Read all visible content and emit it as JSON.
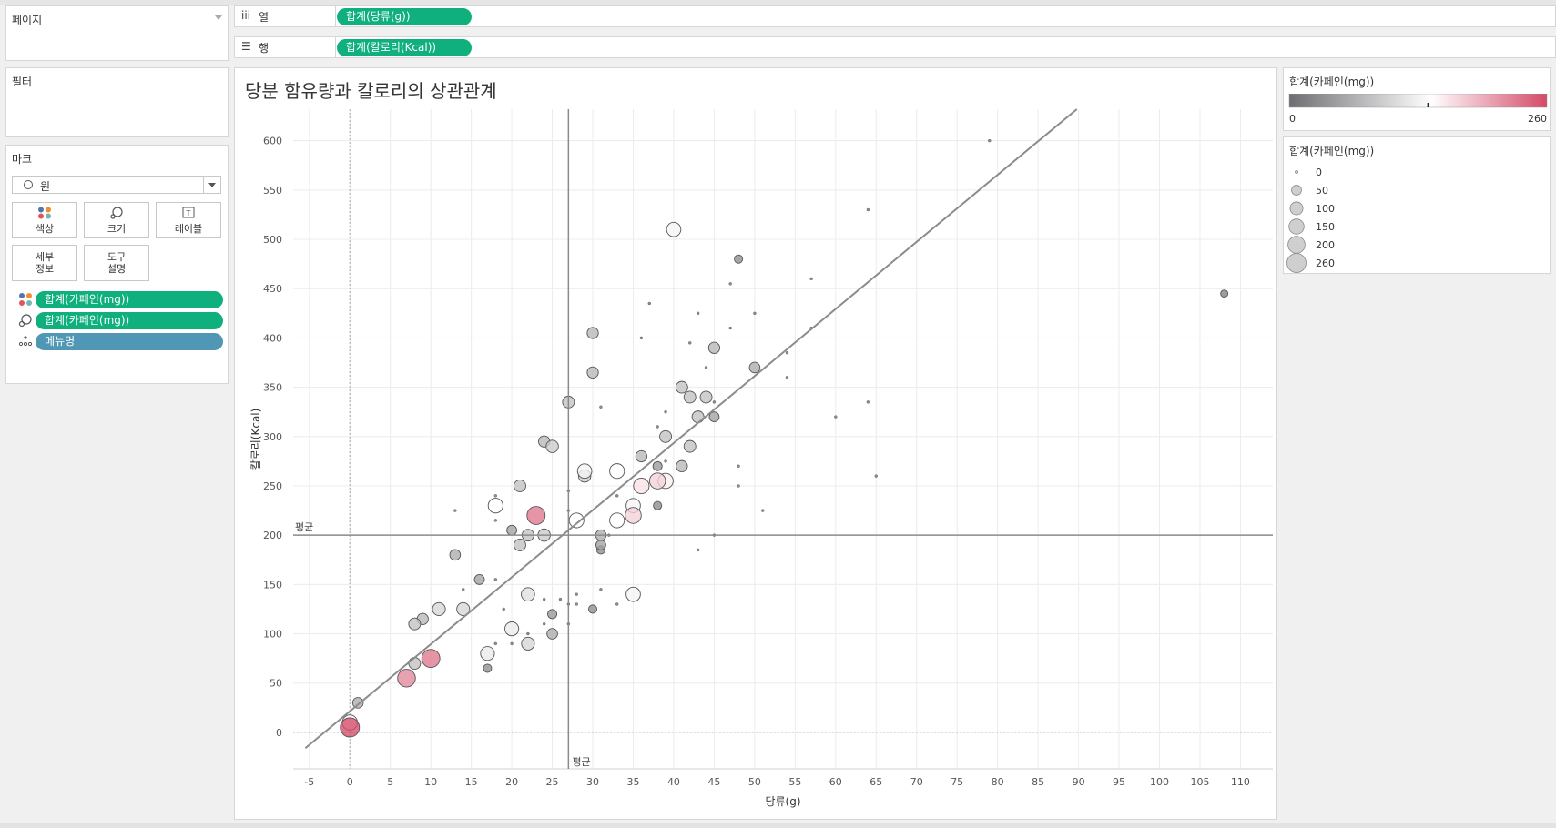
{
  "shelves": {
    "columns": {
      "label": "열",
      "pill": "합계(당류(g))"
    },
    "rows": {
      "label": "행",
      "pill": "합계(칼로리(Kcal))"
    }
  },
  "side": {
    "pages_title": "페이지",
    "filters_title": "필터",
    "marks_title": "마크",
    "mark_type": "원",
    "buttons": {
      "color": "색상",
      "size": "크기",
      "label": "레이블",
      "detail_l1": "세부",
      "detail_l2": "정보",
      "tooltip_l1": "도구",
      "tooltip_l2": "설명"
    },
    "fields": [
      {
        "icon": "color-dots-icon",
        "label": "합계(카페인(mg))"
      },
      {
        "icon": "size-icon",
        "label": "합계(카페인(mg))"
      },
      {
        "icon": "detail-dots-icon",
        "label": "메뉴명"
      }
    ]
  },
  "legend_color": {
    "title": "합계(카페인(mg))",
    "min_label": "0",
    "max_label": "260",
    "colors": [
      "#6e6e72",
      "#ffffff",
      "#d44a68"
    ],
    "marker_value": 140
  },
  "legend_size": {
    "title": "합계(카페인(mg))",
    "items": [
      "0",
      "50",
      "100",
      "150",
      "200",
      "260"
    ]
  },
  "chart_data": {
    "type": "scatter",
    "title": "당분 함유량과 칼로리의 상관관계",
    "xlabel": "당류(g)",
    "ylabel": "칼로리(Kcal)",
    "xlim": [
      -7,
      114
    ],
    "ylim": [
      -37,
      632
    ],
    "xticks": [
      -5,
      0,
      5,
      10,
      15,
      20,
      25,
      30,
      35,
      40,
      45,
      50,
      55,
      60,
      65,
      70,
      75,
      80,
      85,
      90,
      95,
      100,
      105,
      110
    ],
    "yticks": [
      0,
      50,
      100,
      150,
      200,
      250,
      300,
      350,
      400,
      450,
      500,
      550,
      600
    ],
    "reference_lines": {
      "x_mean": 27,
      "y_mean": 200,
      "label": "평균"
    },
    "trend_line": {
      "slope": 6.8,
      "intercept": 21.4
    },
    "color_field": "합계(카페인(mg))",
    "size_field": "합계(카페인(mg))",
    "points": [
      [
        0,
        5,
        260
      ],
      [
        0,
        10,
        150
      ],
      [
        1,
        30,
        60
      ],
      [
        7,
        55,
        220
      ],
      [
        8,
        70,
        80
      ],
      [
        8,
        110,
        80
      ],
      [
        9,
        115,
        70
      ],
      [
        10,
        75,
        230
      ],
      [
        11,
        125,
        100
      ],
      [
        13,
        180,
        60
      ],
      [
        13,
        225,
        0
      ],
      [
        14,
        125,
        100
      ],
      [
        14,
        145,
        0
      ],
      [
        16,
        155,
        50
      ],
      [
        17,
        65,
        30
      ],
      [
        17,
        80,
        120
      ],
      [
        18,
        90,
        0
      ],
      [
        18,
        155,
        0
      ],
      [
        18,
        215,
        0
      ],
      [
        18,
        240,
        0
      ],
      [
        18,
        230,
        140
      ],
      [
        19,
        125,
        0
      ],
      [
        20,
        105,
        120
      ],
      [
        20,
        205,
        50
      ],
      [
        20,
        90,
        0
      ],
      [
        21,
        190,
        80
      ],
      [
        21,
        250,
        80
      ],
      [
        22,
        90,
        100
      ],
      [
        22,
        100,
        0
      ],
      [
        22,
        140,
        110
      ],
      [
        22,
        200,
        80
      ],
      [
        23,
        220,
        230
      ],
      [
        24,
        200,
        90
      ],
      [
        24,
        295,
        70
      ],
      [
        24,
        110,
        0
      ],
      [
        24,
        135,
        0
      ],
      [
        25,
        100,
        60
      ],
      [
        25,
        120,
        40
      ],
      [
        25,
        290,
        90
      ],
      [
        26,
        135,
        0
      ],
      [
        27,
        110,
        0
      ],
      [
        27,
        335,
        80
      ],
      [
        27,
        130,
        0
      ],
      [
        27,
        225,
        0
      ],
      [
        27,
        245,
        0
      ],
      [
        28,
        130,
        0
      ],
      [
        28,
        140,
        0
      ],
      [
        28,
        215,
        140
      ],
      [
        29,
        265,
        130
      ],
      [
        29,
        260,
        90
      ],
      [
        30,
        125,
        30
      ],
      [
        30,
        365,
        70
      ],
      [
        30,
        405,
        70
      ],
      [
        31,
        145,
        0
      ],
      [
        31,
        185,
        30
      ],
      [
        31,
        190,
        50
      ],
      [
        31,
        200,
        60
      ],
      [
        31,
        330,
        0
      ],
      [
        32,
        200,
        0
      ],
      [
        33,
        130,
        0
      ],
      [
        33,
        240,
        0
      ],
      [
        33,
        215,
        140
      ],
      [
        33,
        265,
        140
      ],
      [
        35,
        140,
        130
      ],
      [
        35,
        220,
        170
      ],
      [
        35,
        230,
        130
      ],
      [
        36,
        250,
        160
      ],
      [
        36,
        280,
        70
      ],
      [
        36,
        400,
        0
      ],
      [
        37,
        435,
        0
      ],
      [
        38,
        255,
        170
      ],
      [
        38,
        230,
        30
      ],
      [
        38,
        270,
        40
      ],
      [
        38,
        310,
        0
      ],
      [
        39,
        255,
        150
      ],
      [
        39,
        275,
        0
      ],
      [
        39,
        300,
        80
      ],
      [
        39,
        325,
        0
      ],
      [
        40,
        510,
        130
      ],
      [
        41,
        270,
        70
      ],
      [
        41,
        350,
        80
      ],
      [
        42,
        290,
        80
      ],
      [
        42,
        340,
        80
      ],
      [
        42,
        395,
        0
      ],
      [
        43,
        185,
        0
      ],
      [
        43,
        320,
        80
      ],
      [
        43,
        425,
        0
      ],
      [
        44,
        340,
        80
      ],
      [
        44,
        370,
        0
      ],
      [
        45,
        200,
        0
      ],
      [
        45,
        320,
        50
      ],
      [
        45,
        335,
        0
      ],
      [
        45,
        390,
        70
      ],
      [
        47,
        410,
        0
      ],
      [
        47,
        455,
        0
      ],
      [
        48,
        250,
        0
      ],
      [
        48,
        270,
        0
      ],
      [
        48,
        480,
        30
      ],
      [
        50,
        370,
        60
      ],
      [
        50,
        425,
        0
      ],
      [
        51,
        225,
        0
      ],
      [
        54,
        360,
        0
      ],
      [
        54,
        385,
        0
      ],
      [
        57,
        410,
        0
      ],
      [
        57,
        460,
        0
      ],
      [
        60,
        320,
        0
      ],
      [
        64,
        335,
        0
      ],
      [
        64,
        530,
        0
      ],
      [
        65,
        260,
        0
      ],
      [
        79,
        600,
        0
      ],
      [
        108,
        445,
        20
      ]
    ]
  }
}
